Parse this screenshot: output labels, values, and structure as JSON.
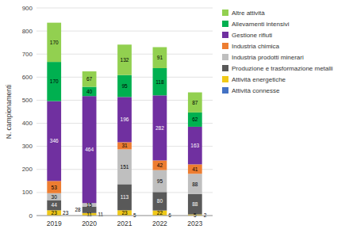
{
  "chart_data": {
    "type": "bar",
    "stacked": true,
    "data_labels": true,
    "grid": true,
    "legend": "right",
    "ylabel": "N. campionamenti",
    "categories": [
      "2019",
      "2020",
      "2021",
      "2022",
      "2023"
    ],
    "ylim": [
      0,
      900
    ],
    "yticks": [
      0,
      100,
      200,
      300,
      400,
      500,
      600,
      700,
      800,
      900
    ],
    "series": [
      {
        "name": "Attività energetiche",
        "color": "#f0c918",
        "values": [
          23,
          11,
          23,
          22,
          5
        ]
      },
      {
        "name": "Produzione e trasformazione metalli",
        "color": "#595959",
        "values": [
          44,
          28,
          113,
          80,
          88
        ]
      },
      {
        "name": "Industria prodotti minerari",
        "color": "#bfbfbf",
        "values": [
          30,
          15,
          151,
          95,
          88
        ]
      },
      {
        "name": "Industria chimica",
        "color": "#ed7d31",
        "values": [
          53,
          0,
          31,
          42,
          41
        ]
      },
      {
        "name": "Gestione rifiuti",
        "color": "#7030a0",
        "values": [
          346,
          464,
          196,
          282,
          163
        ]
      },
      {
        "name": "Allevamenti intensivi",
        "color": "#00b050",
        "values": [
          170,
          40,
          95,
          118,
          62
        ]
      },
      {
        "name": "Altre attività",
        "color": "#92d050",
        "values": [
          170,
          67,
          132,
          91,
          87
        ]
      },
      {
        "name": "Attività connesse",
        "color": "#4472c4",
        "type": "label",
        "values": [
          23,
          11,
          5,
          6,
          2
        ]
      }
    ]
  }
}
